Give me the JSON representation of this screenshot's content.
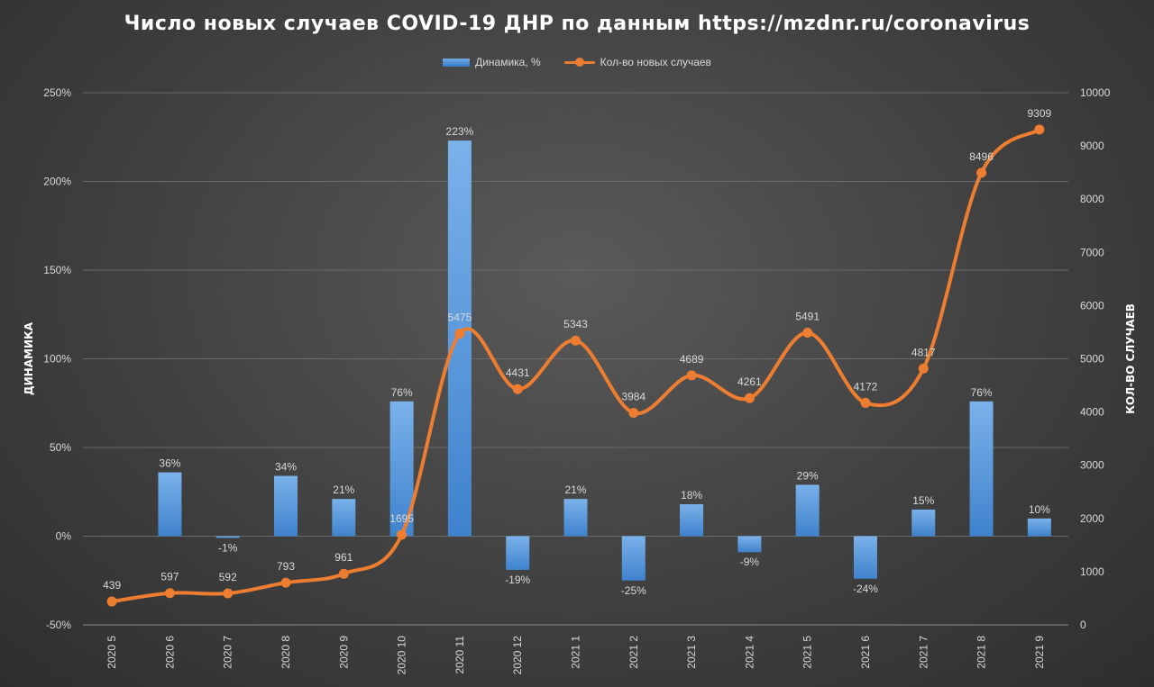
{
  "chart_data": {
    "type": "bar+line",
    "title": "Число новых случаев COVID-19 ДНР по данным https://mzdnr.ru/coronavirus",
    "categories": [
      "2020 5",
      "2020 6",
      "2020 7",
      "2020 8",
      "2020 9",
      "2020 10",
      "2020 11",
      "2020 12",
      "2021 1",
      "2021 2",
      "2021 3",
      "2021 4",
      "2021 5",
      "2021 6",
      "2021 7",
      "2021 8",
      "2021 9"
    ],
    "series": [
      {
        "name": "Динамика, %",
        "type": "bar",
        "axis": "left",
        "values": [
          null,
          36,
          -1,
          34,
          21,
          76,
          223,
          -19,
          21,
          -25,
          18,
          -9,
          29,
          -24,
          15,
          76,
          10
        ],
        "labels": [
          "",
          "36%",
          "-1%",
          "34%",
          "21%",
          "76%",
          "223%",
          "-19%",
          "21%",
          "-25%",
          "18%",
          "-9%",
          "29%",
          "-24%",
          "15%",
          "76%",
          "10%"
        ]
      },
      {
        "name": "Кол-во новых случаев",
        "type": "line",
        "axis": "right",
        "values": [
          439,
          597,
          592,
          793,
          961,
          1695,
          5475,
          4431,
          5343,
          3984,
          4689,
          4261,
          5491,
          4172,
          4817,
          8496,
          9309
        ],
        "labels": [
          "439",
          "597",
          "592",
          "793",
          "961",
          "1695",
          "5475",
          "4431",
          "5343",
          "3984",
          "4689",
          "4261",
          "5491",
          "4172",
          "4817",
          "8496",
          "9309"
        ]
      }
    ],
    "ylabel_left": "ДИНАМИКА",
    "ylabel_right": "КОЛ-ВО СЛУЧАЕВ",
    "ylim_left": [
      -50,
      250
    ],
    "yticks_left": [
      "250%",
      "200%",
      "150%",
      "100%",
      "50%",
      "0%",
      "-50%"
    ],
    "ylim_right": [
      0,
      10000
    ],
    "yticks_right": [
      "10000",
      "9000",
      "8000",
      "7000",
      "6000",
      "5000",
      "4000",
      "3000",
      "2000",
      "1000",
      "0"
    ],
    "grid": true,
    "legend_position": "top"
  },
  "colors": {
    "bar": "#5b9bd5",
    "line": "#ed7d31"
  }
}
